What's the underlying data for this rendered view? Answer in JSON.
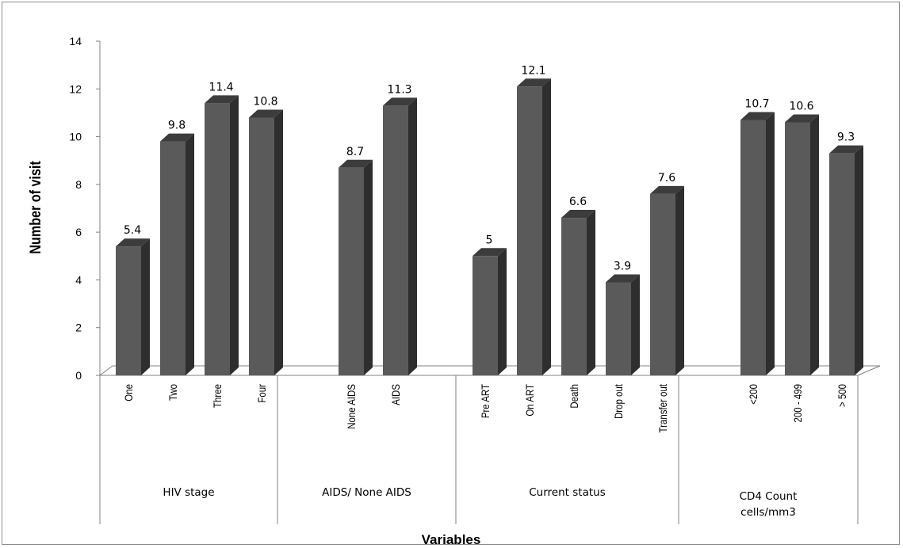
{
  "chart_data": {
    "type": "bar",
    "style": "3d-column",
    "title": "",
    "xlabel": "Variables",
    "ylabel": "Number of visit",
    "ylim": [
      0,
      14
    ],
    "yticks": [
      "0",
      "2",
      "4",
      "6",
      "8",
      "10",
      "12",
      "14"
    ],
    "grid": false,
    "legend": "none",
    "bar_color": "#5a5a5a",
    "groups": [
      {
        "label_lines": [
          "HIV stage"
        ],
        "categories": [
          {
            "label": "One",
            "value": 5.4,
            "value_label": "5.4"
          },
          {
            "label": "Two",
            "value": 9.8,
            "value_label": "9.8"
          },
          {
            "label": "Three",
            "value": 11.4,
            "value_label": "11.4"
          },
          {
            "label": "Four",
            "value": 10.8,
            "value_label": "10.8"
          }
        ]
      },
      {
        "label_lines": [
          "AIDS/ None AIDS"
        ],
        "categories": [
          {
            "label": "None AIDS",
            "value": 8.7,
            "value_label": "8.7"
          },
          {
            "label": "AIDS",
            "value": 11.3,
            "value_label": "11.3"
          }
        ]
      },
      {
        "label_lines": [
          "Current status"
        ],
        "categories": [
          {
            "label": "Pre ART",
            "value": 5,
            "value_label": "5"
          },
          {
            "label": "On ART",
            "value": 12.1,
            "value_label": "12.1"
          },
          {
            "label": "Death",
            "value": 6.6,
            "value_label": "6.6"
          },
          {
            "label": "Drop out",
            "value": 3.9,
            "value_label": "3.9"
          },
          {
            "label": "Transfer out",
            "value": 7.6,
            "value_label": "7.6"
          }
        ]
      },
      {
        "label_lines": [
          "CD4 Count",
          "cells/mm3"
        ],
        "categories": [
          {
            "label": "<200",
            "value": 10.7,
            "value_label": "10.7"
          },
          {
            "label": "200 - 499",
            "value": 10.6,
            "value_label": "10.6"
          },
          {
            "label": "> 500",
            "value": 9.3,
            "value_label": "9.3"
          }
        ]
      }
    ]
  }
}
